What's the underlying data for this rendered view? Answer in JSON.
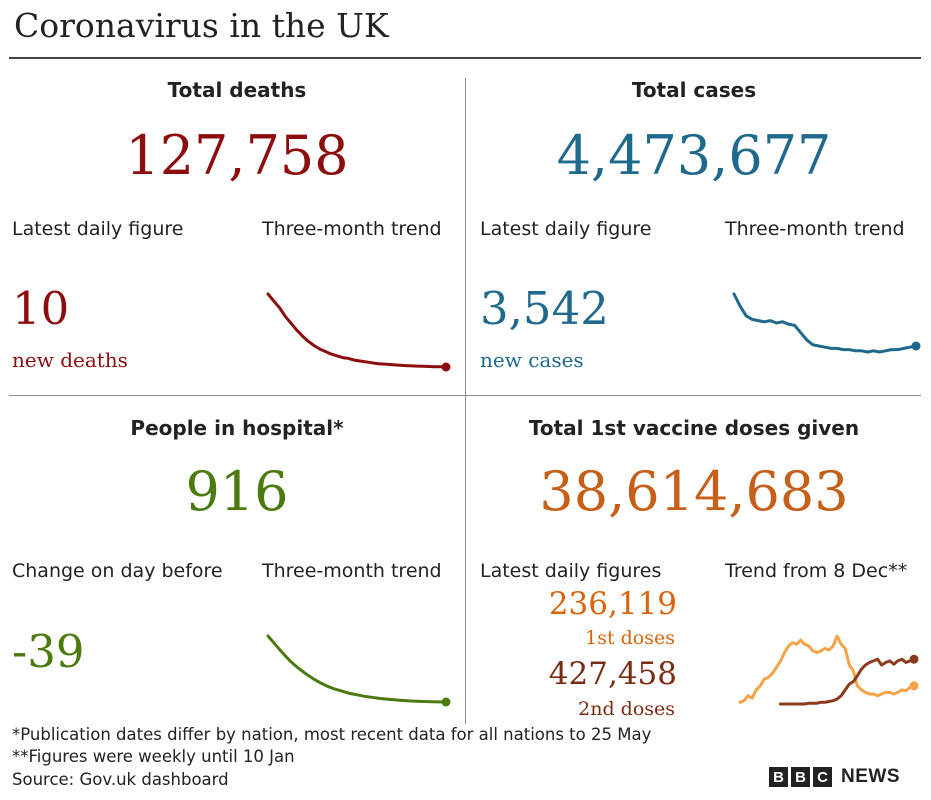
{
  "title": "Coronavirus in the UK",
  "colors": {
    "deaths": "#8c0d0d",
    "cases": "#1f6a8c",
    "hospital": "#4c7a11",
    "vaccine": "#c55f1a",
    "first_doses": "#f5a347",
    "second_doses": "#8b3a1e"
  },
  "deaths": {
    "heading": "Total deaths",
    "total": "127,758",
    "daily_label": "Latest daily figure",
    "trend_label": "Three-month trend",
    "daily_value": "10",
    "daily_unit": "new deaths"
  },
  "cases": {
    "heading": "Total cases",
    "total": "4,473,677",
    "daily_label": "Latest daily figure",
    "trend_label": "Three-month trend",
    "daily_value": "3,542",
    "daily_unit": "new cases"
  },
  "hospital": {
    "heading": "People in hospital*",
    "total": "916",
    "daily_label": "Change on day before",
    "trend_label": "Three-month trend",
    "daily_value": "-39"
  },
  "vaccine": {
    "heading": "Total 1st vaccine doses given",
    "total": "38,614,683",
    "daily_label": "Latest daily figures",
    "trend_label": "Trend from 8 Dec**",
    "first_value": "236,119",
    "first_label": "1st doses",
    "second_value": "427,458",
    "second_label": "2nd doses"
  },
  "footnotes": {
    "note1": "*Publication dates differ by nation, most recent data for all nations to 25 May",
    "note2": "**Figures were weekly until 10 Jan",
    "source": "Source: Gov.uk dashboard"
  },
  "branding": {
    "bbc_letters": [
      "B",
      "B",
      "C"
    ],
    "news": "NEWS"
  },
  "chart_data": [
    {
      "type": "line",
      "series": [
        {
          "values": [
            100,
            92,
            84,
            74,
            66,
            58,
            51,
            45,
            40,
            36,
            33,
            30,
            28,
            26,
            25,
            23,
            22,
            21,
            20,
            19,
            18.5,
            18,
            17.5,
            17,
            16.6,
            16.3,
            16,
            15.8,
            15.6,
            15.4,
            15.2,
            15
          ]
        }
      ]
    },
    {
      "type": "line",
      "series": [
        {
          "values": [
            100,
            90,
            82,
            79,
            78,
            77,
            78,
            76,
            77,
            75,
            74,
            68,
            62,
            58,
            57,
            56,
            55,
            55,
            54,
            54,
            53,
            53,
            52,
            53,
            52,
            53,
            54,
            54,
            55,
            56,
            57
          ]
        }
      ]
    },
    {
      "type": "line",
      "series": [
        {
          "values": [
            100,
            88,
            76,
            65,
            56,
            48,
            41,
            35,
            30,
            26,
            23,
            20,
            18,
            16,
            14.5,
            13,
            12,
            11,
            10.2,
            9.6,
            9.1,
            8.7,
            8.4,
            8.2,
            8
          ]
        }
      ]
    },
    {
      "type": "line",
      "series": [
        {
          "name": "1st doses",
          "values": [
            10,
            12,
            18,
            15,
            25,
            30,
            38,
            40,
            45,
            52,
            60,
            70,
            78,
            82,
            80,
            85,
            80,
            78,
            72,
            70,
            72,
            75,
            73,
            78,
            90,
            80,
            75,
            55,
            48,
            30,
            25,
            22,
            20,
            20,
            18,
            20,
            22,
            22,
            20,
            22,
            25,
            24,
            28,
            30
          ]
        },
        {
          "name": "2nd doses",
          "values": [
            null,
            null,
            null,
            null,
            null,
            null,
            null,
            null,
            null,
            null,
            8,
            8,
            8,
            8,
            8,
            8,
            8,
            9,
            9,
            9,
            10,
            10,
            11,
            12,
            14,
            18,
            25,
            32,
            35,
            42,
            50,
            55,
            58,
            60,
            62,
            55,
            58,
            60,
            56,
            60,
            62,
            58,
            60,
            62
          ]
        }
      ]
    }
  ]
}
